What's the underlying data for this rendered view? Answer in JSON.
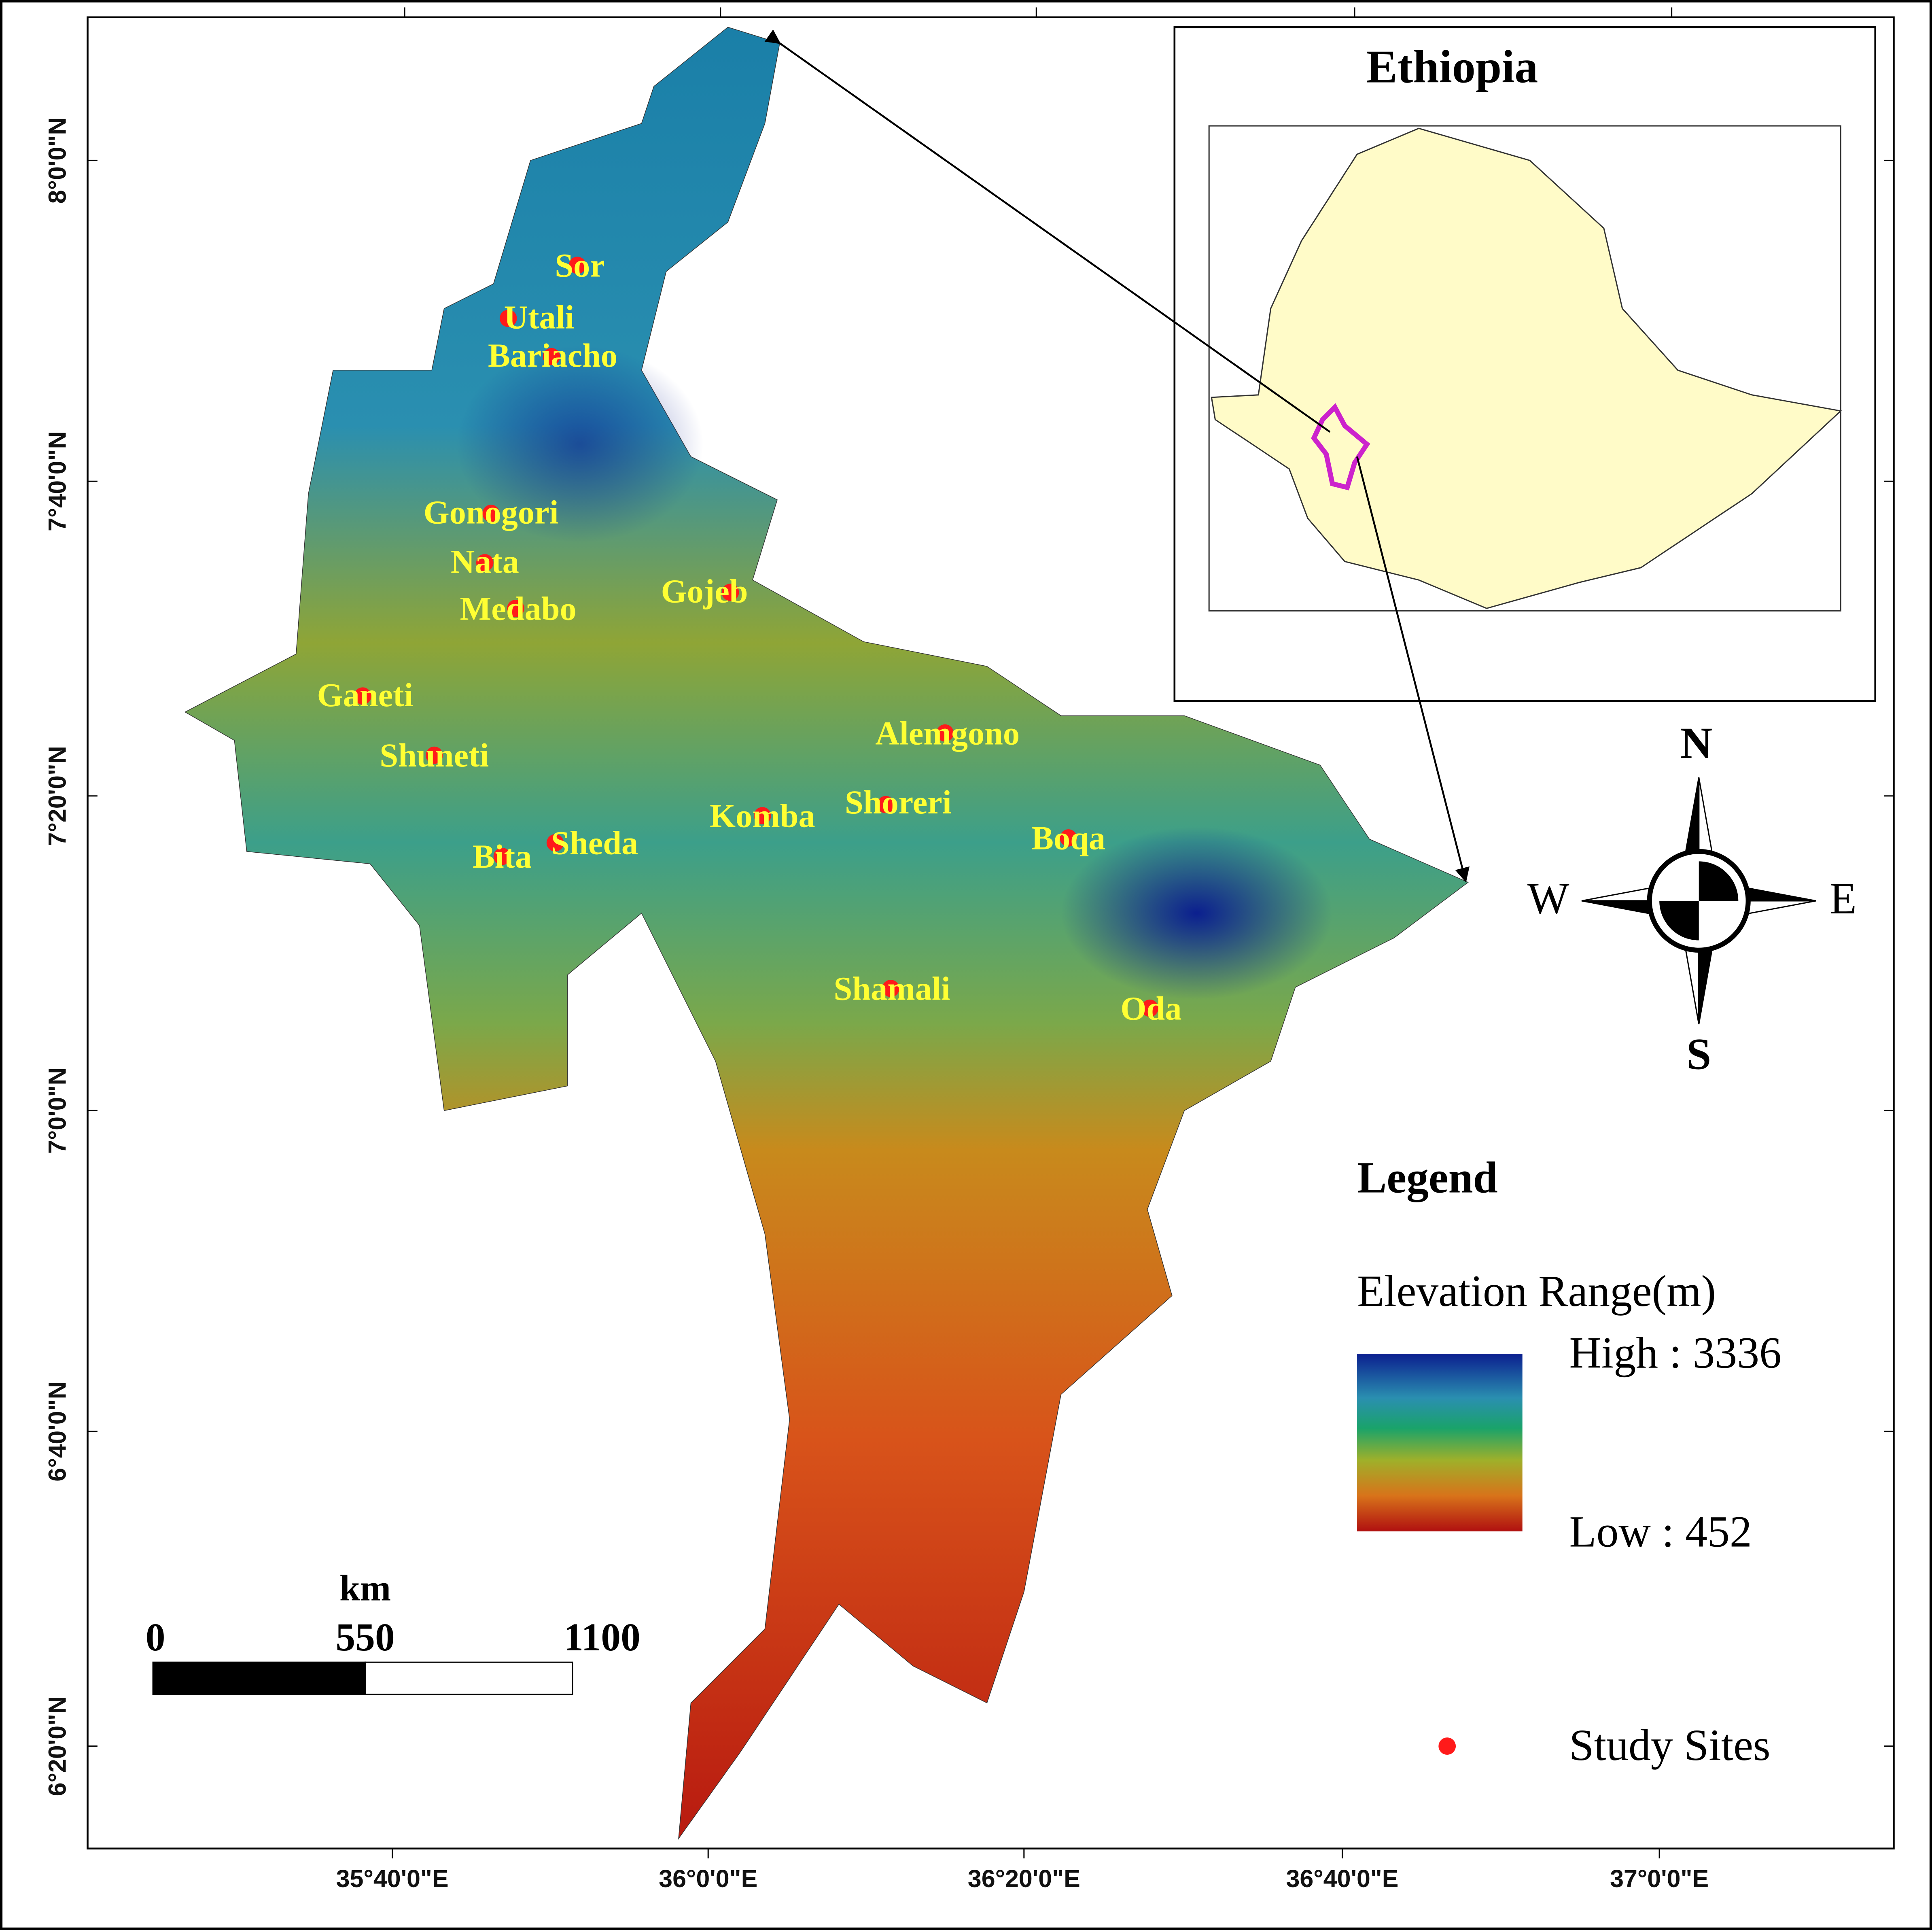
{
  "map": {
    "inset": {
      "title": "Ethiopia"
    },
    "latitude_labels": [
      "8°0'0\"N",
      "7°40'0\"N",
      "7°20'0\"N",
      "7°0'0\"N",
      "6°40'0\"N",
      "6°20'0\"N"
    ],
    "longitude_labels": [
      "35°40'0\"E",
      "36°0'0\"E",
      "36°20'0\"E",
      "36°40'0\"E",
      "37°0'0\"E"
    ],
    "sites": [
      "Sor",
      "Utali",
      "Bariacho",
      "Gonogori",
      "Nata",
      "Medabo",
      "Gojeb",
      "Ganeti",
      "Shuneti",
      "Alemgono",
      "Shoreri",
      "Komba",
      "Boqa",
      "Sheda",
      "Bita",
      "Shamali",
      "Oda"
    ],
    "compass": {
      "north": "N",
      "south": "S",
      "east": "E",
      "west": "W"
    },
    "legend": {
      "title": "Legend",
      "elevation_title": "Elevation Range(m)",
      "high": "High : 3336",
      "low": "Low : 452",
      "sites": "Study Sites"
    },
    "scale_bar": {
      "unit": "km",
      "labels": [
        "0",
        "550",
        "1100"
      ]
    }
  }
}
